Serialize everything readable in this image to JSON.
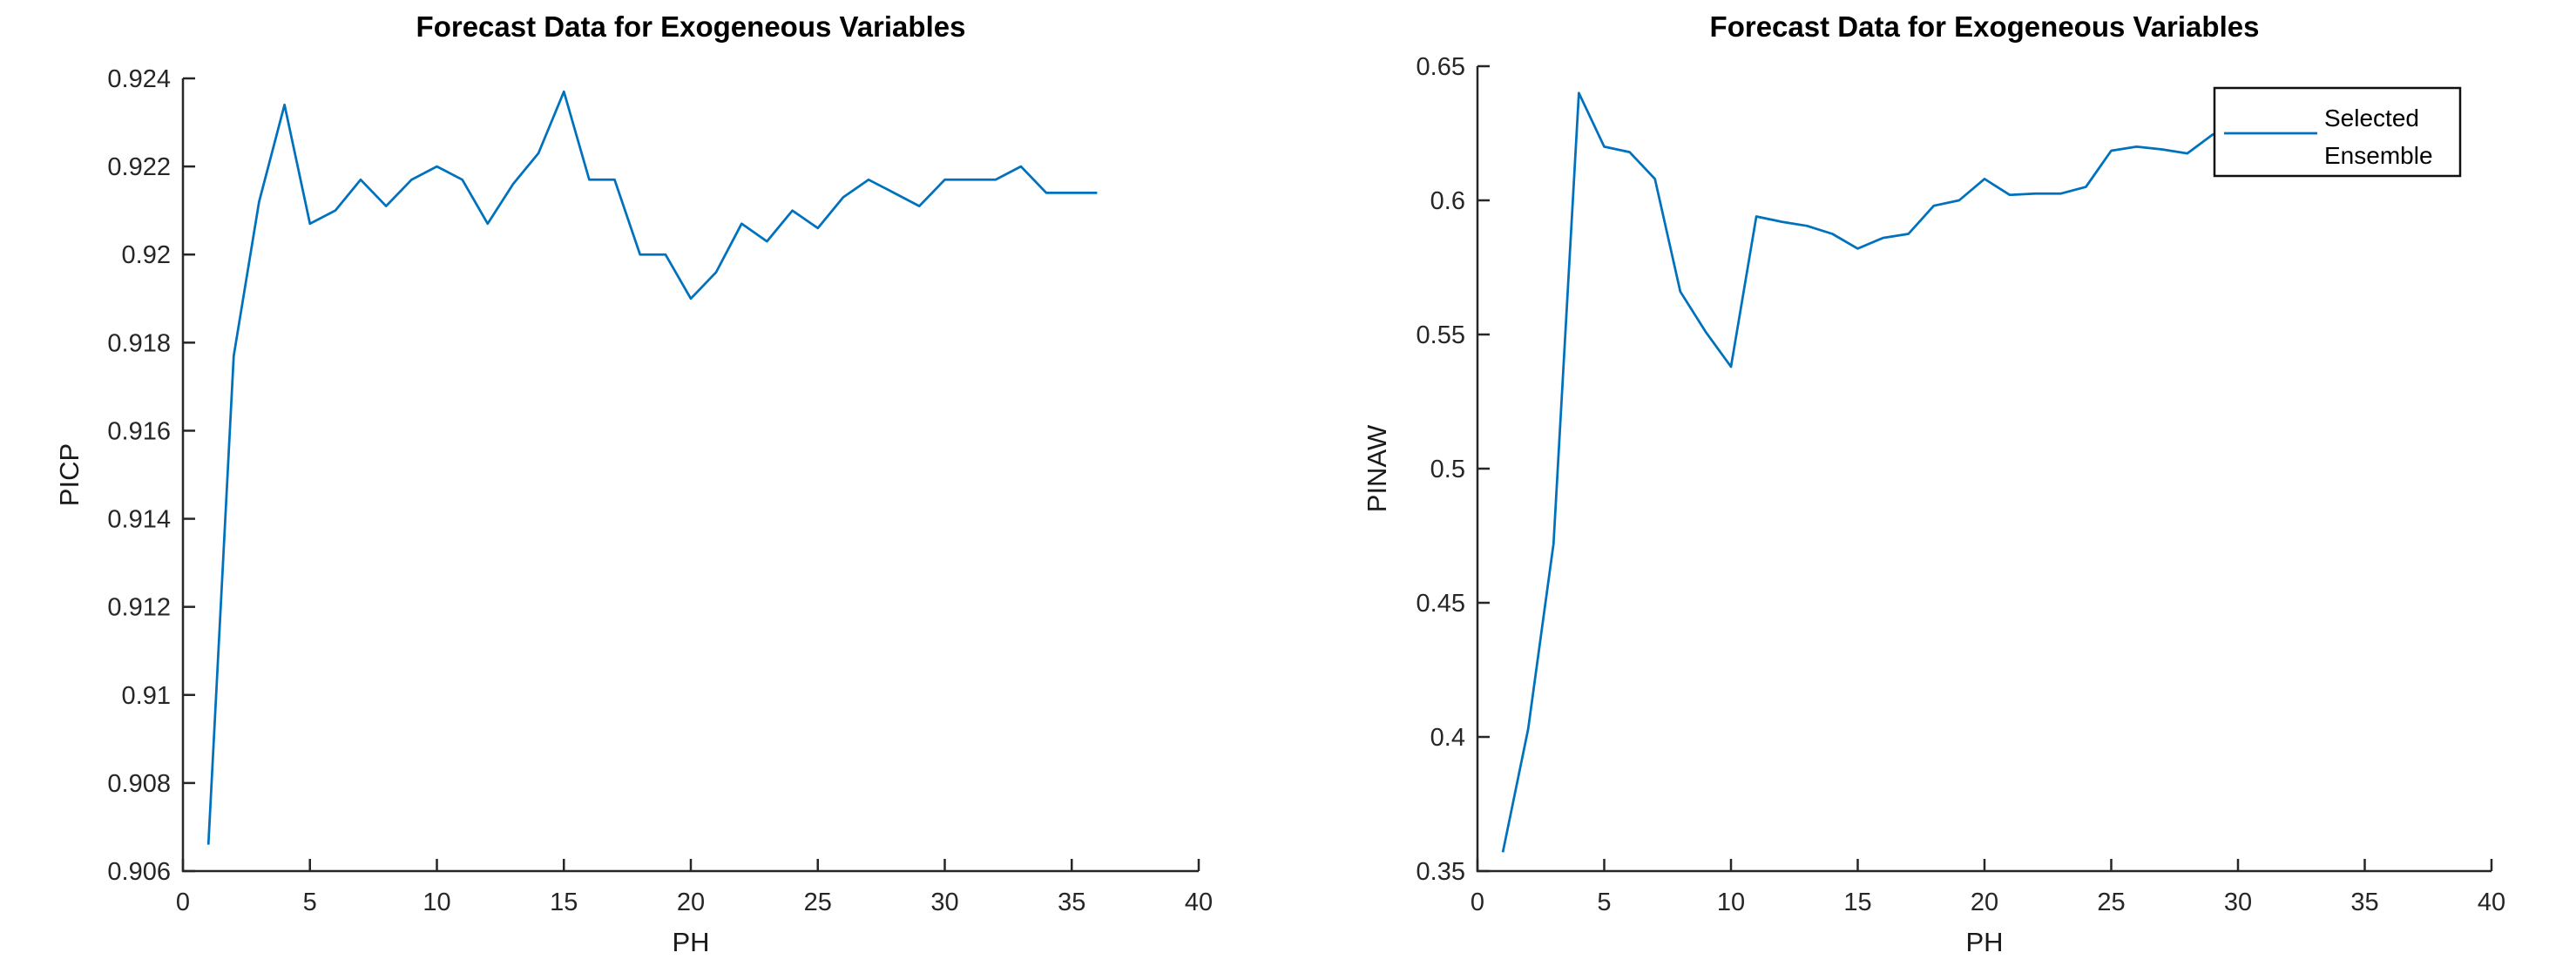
{
  "figure": {
    "background_color": "#ffffff",
    "axis_color": "#262626",
    "line_color": "#0072BD"
  },
  "chart_data": [
    {
      "type": "line",
      "title": "Forecast Data for Exogeneous Variables",
      "xlabel": "PH",
      "ylabel": "PICP",
      "xlim": [
        0,
        40
      ],
      "ylim": [
        0.906,
        0.924
      ],
      "grid": false,
      "legend": null,
      "xticks": [
        0,
        5,
        10,
        15,
        20,
        25,
        30,
        35,
        40
      ],
      "xtick_labels": [
        "0",
        "5",
        "10",
        "15",
        "20",
        "25",
        "30",
        "35",
        "40"
      ],
      "yticks": [
        0.906,
        0.908,
        0.91,
        0.912,
        0.914,
        0.916,
        0.918,
        0.92,
        0.922,
        0.924
      ],
      "ytick_labels": [
        "0.906",
        "0.908",
        "0.91",
        "0.912",
        "0.914",
        "0.916",
        "0.918",
        "0.92",
        "0.922",
        "0.924"
      ],
      "series": [
        {
          "name": "Selected Ensemble",
          "color": "#0072BD",
          "x": [
            1,
            2,
            3,
            4,
            5,
            6,
            7,
            8,
            9,
            10,
            11,
            12,
            13,
            14,
            15,
            16,
            17,
            18,
            19,
            20,
            21,
            22,
            23,
            24,
            25,
            26,
            27,
            28,
            29,
            30,
            31,
            32,
            33,
            34,
            35,
            36
          ],
          "values": [
            0.9066,
            0.9177,
            0.9212,
            0.9234,
            0.9207,
            0.921,
            0.9217,
            0.9211,
            0.9217,
            0.922,
            0.9217,
            0.9207,
            0.9216,
            0.9223,
            0.9237,
            0.9217,
            0.9217,
            0.92,
            0.92,
            0.919,
            0.9196,
            0.9207,
            0.9203,
            0.921,
            0.9206,
            0.9213,
            0.9217,
            0.9214,
            0.9211,
            0.9217,
            0.9217,
            0.9217,
            0.922,
            0.9214,
            0.9214,
            0.9214
          ]
        }
      ]
    },
    {
      "type": "line",
      "title": "Forecast Data for Exogeneous Variables",
      "xlabel": "PH",
      "ylabel": "PINAW",
      "xlim": [
        0,
        40
      ],
      "ylim": [
        0.35,
        0.65
      ],
      "grid": false,
      "legend": {
        "position": "top-right",
        "labels": [
          "Selected",
          "Ensemble"
        ]
      },
      "xticks": [
        0,
        5,
        10,
        15,
        20,
        25,
        30,
        35,
        40
      ],
      "xtick_labels": [
        "0",
        "5",
        "10",
        "15",
        "20",
        "25",
        "30",
        "35",
        "40"
      ],
      "yticks": [
        0.35,
        0.4,
        0.45,
        0.5,
        0.55,
        0.6,
        0.65
      ],
      "ytick_labels": [
        "0.35",
        "0.4",
        "0.45",
        "0.5",
        "0.55",
        "0.6",
        "0.65"
      ],
      "series": [
        {
          "name": "Selected Ensemble",
          "color": "#0072BD",
          "x": [
            1,
            2,
            3,
            4,
            5,
            6,
            7,
            8,
            9,
            10,
            11,
            12,
            13,
            14,
            15,
            16,
            17,
            18,
            19,
            20,
            21,
            22,
            23,
            24,
            25,
            26,
            27,
            28,
            29,
            30,
            31,
            32,
            33,
            34,
            35,
            36
          ],
          "values": [
            0.357,
            0.403,
            0.472,
            0.64,
            0.62,
            0.618,
            0.608,
            0.566,
            0.551,
            0.538,
            0.594,
            0.592,
            0.5905,
            0.5875,
            0.582,
            0.586,
            0.5875,
            0.598,
            0.6,
            0.608,
            0.602,
            0.6025,
            0.6025,
            0.605,
            0.6185,
            0.62,
            0.619,
            0.6175,
            0.6245,
            0.627,
            0.6265,
            0.6265,
            0.627,
            0.6265,
            0.6265,
            0.6265
          ]
        }
      ]
    }
  ]
}
